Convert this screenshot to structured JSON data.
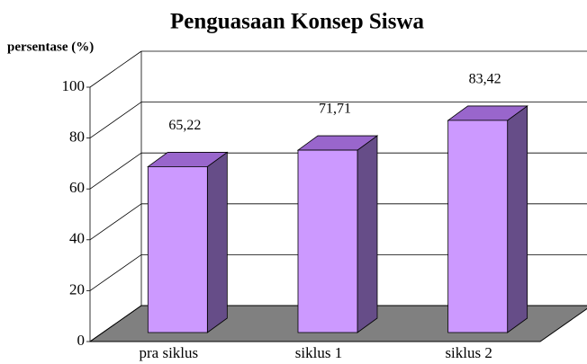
{
  "chart_data": {
    "type": "bar3d",
    "title": "Penguasaan Konsep Siswa",
    "y_label": "persentase (%)",
    "categories": [
      "pra siklus",
      "siklus 1",
      "siklus 2"
    ],
    "values": [
      65.22,
      71.71,
      83.42
    ],
    "value_labels": [
      "65,22",
      "71,71",
      "83,42"
    ],
    "color": "#cc99ff",
    "ylim": [
      0,
      100
    ],
    "yticks": [
      0,
      20,
      40,
      60,
      80,
      100
    ],
    "grid": true
  }
}
